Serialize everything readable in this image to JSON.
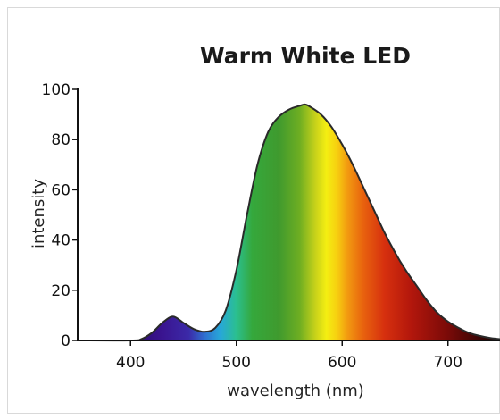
{
  "chart_data": {
    "type": "area",
    "title": "Warm White LED",
    "xlabel": "wavelength (nm)",
    "ylabel": "intensity",
    "xlim": [
      350,
      750
    ],
    "ylim": [
      0,
      100
    ],
    "x_ticks": [
      400,
      500,
      600,
      700
    ],
    "y_ticks": [
      0,
      20,
      40,
      60,
      80,
      100
    ],
    "grid": false,
    "fill": "visible-spectrum colors by wavelength",
    "series": [
      {
        "x": [
          350,
          400,
          410,
          420,
          430,
          440,
          450,
          460,
          470,
          480,
          490,
          500,
          510,
          520,
          530,
          540,
          550,
          560,
          565,
          570,
          580,
          590,
          600,
          610,
          620,
          630,
          640,
          650,
          660,
          670,
          680,
          690,
          700,
          710,
          720,
          730,
          740,
          750
        ],
        "values": [
          0,
          0,
          0.5,
          3,
          7,
          9.5,
          7,
          4.5,
          3.5,
          5,
          12,
          28,
          50,
          70,
          83,
          89,
          92,
          93.5,
          94,
          93,
          90,
          85,
          78,
          70,
          61,
          52,
          43,
          35,
          28,
          22,
          16,
          11,
          7.5,
          5,
          3,
          1.8,
          1,
          0.5
        ]
      }
    ]
  }
}
